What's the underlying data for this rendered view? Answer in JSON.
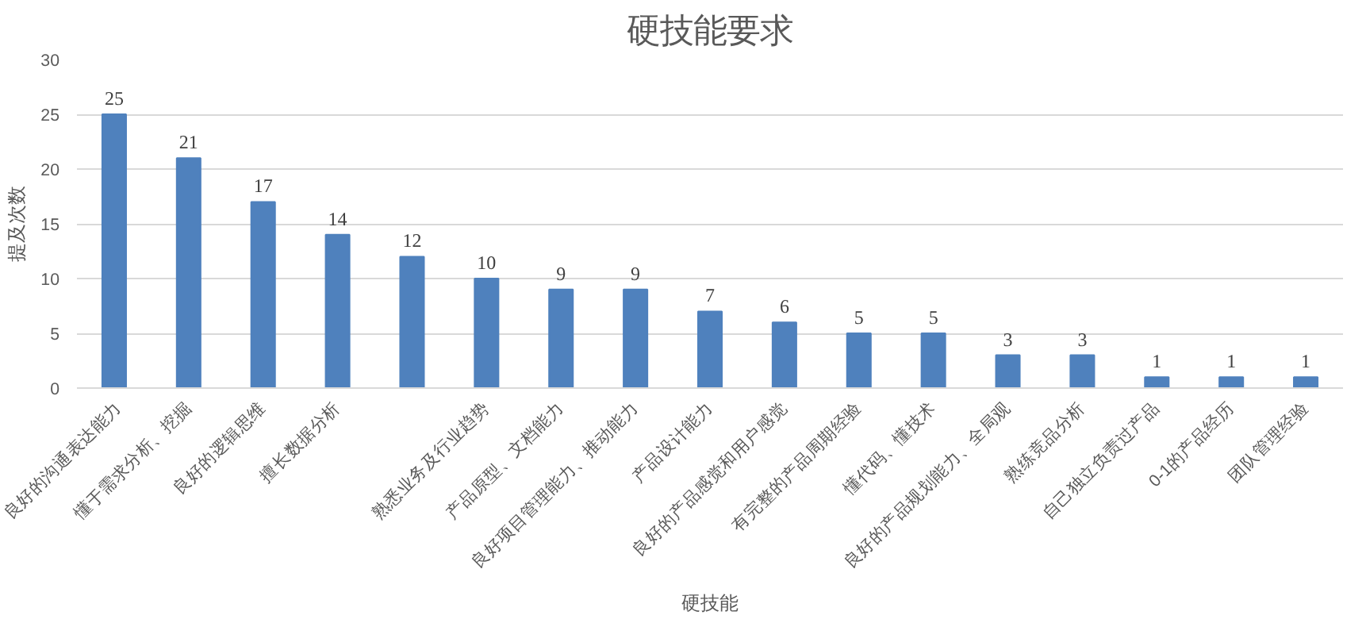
{
  "chart_data": {
    "type": "bar",
    "title": "硬技能要求",
    "xlabel": "硬技能",
    "ylabel": "提及次数",
    "categories": [
      "良好的沟通表达能力",
      "懂于需求分析、挖掘",
      "良好的逻辑思维",
      "擅长数据分析",
      null,
      "熟悉业务及行业趋势",
      "产品原型、文档能力",
      "良好项目管理能力、推动能力",
      "产品设计能力",
      "良好的产品感觉和用户感觉",
      "有完整的产品周期经验",
      "懂代码、懂技术",
      "良好的产品规划能力、全局观",
      "熟练竞品分析",
      "自己独立负责过产品",
      "0-1的产品经历",
      "团队管理经验"
    ],
    "values": [
      25,
      21,
      17,
      14,
      12,
      10,
      9,
      9,
      7,
      6,
      5,
      5,
      3,
      3,
      1,
      1,
      1
    ],
    "color": "#4f81bd",
    "ylim": [
      0,
      30
    ],
    "yticks": [
      0,
      5,
      10,
      15,
      20,
      25,
      30
    ],
    "grid": "y",
    "data_labels": true
  }
}
